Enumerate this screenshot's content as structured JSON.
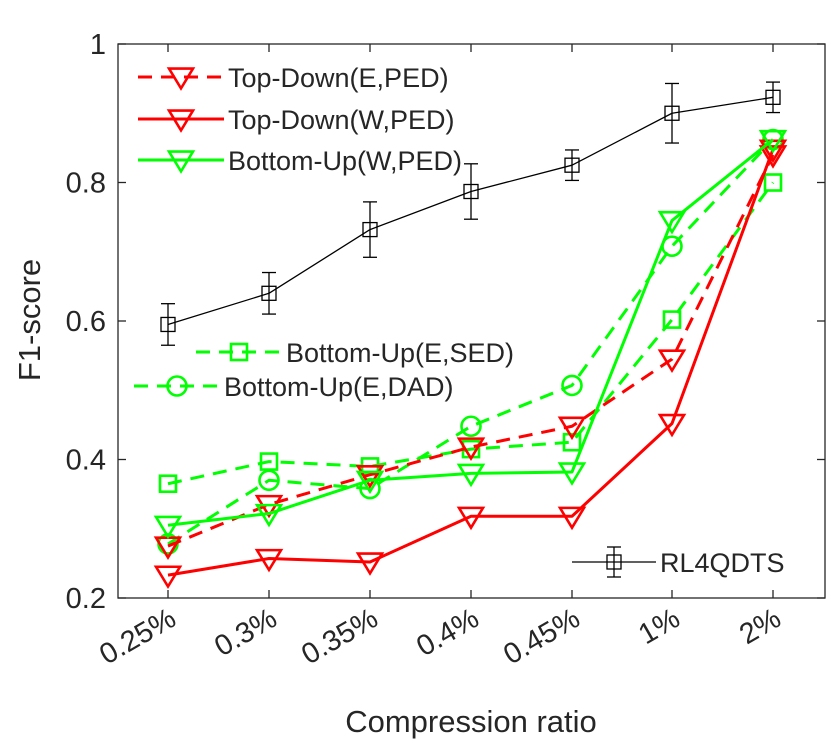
{
  "chart_data": {
    "type": "line",
    "title": "",
    "xlabel": "Compression ratio",
    "ylabel": "F1-score",
    "categories": [
      "0.25%",
      "0.3%",
      "0.35%",
      "0.4%",
      "0.45%",
      "1%",
      "2%"
    ],
    "ylim": [
      0.2,
      1.0
    ],
    "yticks": [
      0.2,
      0.4,
      0.6,
      0.8,
      1.0
    ],
    "ytick_labels": [
      "0.2",
      "0.4",
      "0.6",
      "0.8",
      "1"
    ],
    "grid": false,
    "series": [
      {
        "name": "Top-Down(E,PED)",
        "color": "#ff0000",
        "dash": "dashed",
        "marker": "triangle-down",
        "values": [
          0.275,
          0.335,
          0.378,
          0.418,
          0.448,
          0.545,
          0.84
        ]
      },
      {
        "name": "Top-Down(W,PED)",
        "color": "#ff0000",
        "dash": "solid",
        "marker": "triangle-down",
        "values": [
          0.233,
          0.257,
          0.252,
          0.318,
          0.318,
          0.452,
          0.848
        ]
      },
      {
        "name": "Bottom-Up(W,PED)",
        "color": "#00ff00",
        "dash": "solid",
        "marker": "triangle-down",
        "values": [
          0.305,
          0.322,
          0.37,
          0.38,
          0.382,
          0.745,
          0.862
        ]
      },
      {
        "name": "Bottom-Up(E,SED)",
        "color": "#00ff00",
        "dash": "dashed",
        "marker": "square",
        "values": [
          0.365,
          0.397,
          0.39,
          0.415,
          0.425,
          0.602,
          0.8
        ]
      },
      {
        "name": "Bottom-Up(E,DAD)",
        "color": "#00ff00",
        "dash": "dashed",
        "marker": "circle",
        "values": [
          0.278,
          0.37,
          0.358,
          0.448,
          0.507,
          0.708,
          0.862
        ]
      },
      {
        "name": "RL4QDTS",
        "color": "#000000",
        "dash": "solid",
        "marker": "square",
        "values": [
          0.595,
          0.64,
          0.732,
          0.787,
          0.825,
          0.9,
          0.923
        ],
        "error": [
          0.03,
          0.03,
          0.04,
          0.04,
          0.022,
          0.043,
          0.022
        ]
      }
    ],
    "legend_top_left": [
      "Top-Down(E,PED)",
      "Top-Down(W,PED)",
      "Bottom-Up(W,PED)"
    ],
    "legend_middle_left": [
      "Bottom-Up(E,SED)",
      "Bottom-Up(E,DAD)"
    ],
    "legend_bottom_right": [
      "RL4QDTS"
    ]
  }
}
